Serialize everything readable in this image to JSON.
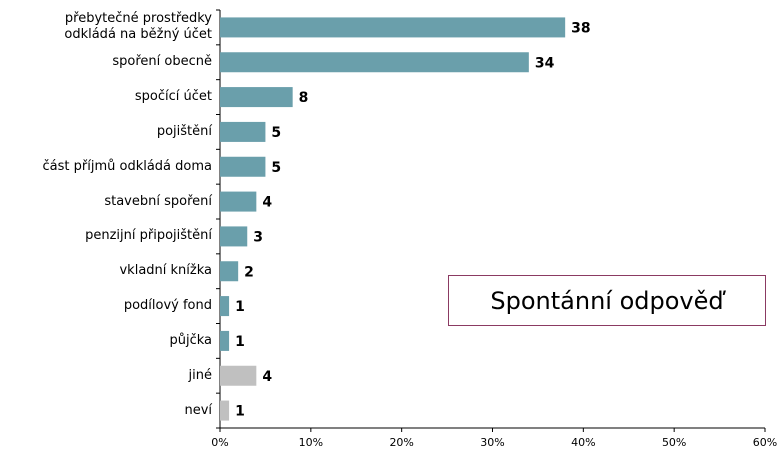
{
  "chart_data": {
    "type": "bar",
    "orientation": "horizontal",
    "annotation": "Spontánní odpověď",
    "categories": [
      "přebytečné prostředky\nodkládá na běžný účet",
      "spoření obecně",
      "spočící účet",
      "pojištění",
      "část příjmů odkládá doma",
      "stavební spoření",
      "penzijní připojištění",
      "vkladní knížka",
      "podílový fond",
      "půjčka",
      "jiné",
      "neví"
    ],
    "values": [
      38,
      34,
      8,
      5,
      5,
      4,
      3,
      2,
      1,
      1,
      4,
      1
    ],
    "colors": [
      "#6a9fab",
      "#6a9fab",
      "#6a9fab",
      "#6a9fab",
      "#6a9fab",
      "#6a9fab",
      "#6a9fab",
      "#6a9fab",
      "#6a9fab",
      "#6a9fab",
      "#c0c0c0",
      "#c0c0c0"
    ],
    "xlim": [
      0,
      60
    ],
    "xticks": [
      {
        "value": 0,
        "label": "0%"
      },
      {
        "value": 10,
        "label": "10%"
      },
      {
        "value": 20,
        "label": "20%"
      },
      {
        "value": 30,
        "label": "30%"
      },
      {
        "value": 40,
        "label": "40%"
      },
      {
        "value": 50,
        "label": "50%"
      },
      {
        "value": 60,
        "label": "60%"
      }
    ],
    "grid": false
  }
}
